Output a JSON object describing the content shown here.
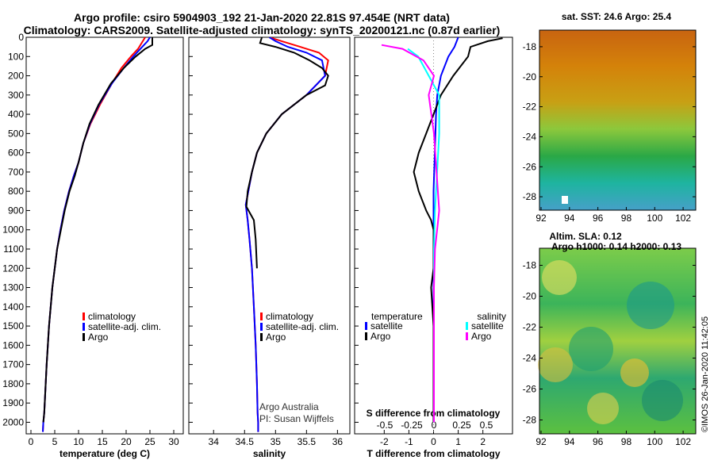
{
  "header": {
    "line1": "Argo profile: csiro 5904903_192 21-Jan-2020 22.81S 97.454E (NRT data)",
    "line2": "Climatology: CARS2009. Satellite-adjusted climatology: synTS_20200121.nc (0.87d earlier)"
  },
  "colors": {
    "climatology": "#ff0000",
    "satellite": "#0000ff",
    "argo": "#000000",
    "salinity_sat": "#00ffff",
    "salinity_argo": "#ff00ff"
  },
  "depth_axis": {
    "ticks": [
      0,
      100,
      200,
      300,
      400,
      500,
      600,
      700,
      800,
      900,
      1000,
      1100,
      1200,
      1300,
      1400,
      1500,
      1600,
      1700,
      1800,
      1900,
      2000
    ],
    "min": 0,
    "max": 2060
  },
  "panels": {
    "temperature": {
      "xlabel": "temperature (deg C)",
      "xlim": [
        -1,
        32
      ],
      "xticks": [
        0,
        5,
        10,
        15,
        20,
        25,
        30
      ],
      "legend": [
        {
          "label": "climatology",
          "key": "climatology"
        },
        {
          "label": "satellite-adj. clim.",
          "key": "satellite"
        },
        {
          "label": "Argo",
          "key": "argo"
        }
      ]
    },
    "salinity": {
      "xlabel": "salinity",
      "xlim": [
        33.6,
        36.2
      ],
      "xticks": [
        "34",
        "34.5",
        "35",
        "35.5",
        "36"
      ],
      "legend": [
        {
          "label": "climatology",
          "key": "climatology"
        },
        {
          "label": "satellite-adj. clim.",
          "key": "satellite"
        },
        {
          "label": "Argo",
          "key": "argo"
        }
      ],
      "credit1": "Argo Australia",
      "credit2": "PI: Susan Wijffels"
    },
    "difference": {
      "xlabel": "T difference from climatology",
      "xlim": [
        -3.2,
        3.2
      ],
      "xticks": [
        -2,
        -1,
        0,
        1,
        2
      ],
      "stitle": "S difference from climatology",
      "sticks": [
        "-0.5",
        "-0.25",
        "0",
        "0.25",
        "0.5"
      ],
      "legend_temp_title": "temperature",
      "legend_sal_title": "salinity",
      "legend_sat": "satellite",
      "legend_argo": "Argo"
    }
  },
  "chart_data": [
    {
      "type": "line",
      "title": "",
      "xlabel": "temperature (deg C)",
      "ylabel": "depth",
      "xlim": [
        -1,
        32
      ],
      "ylim": [
        2060,
        0
      ],
      "series": [
        {
          "name": "climatology",
          "color": "#ff0000",
          "x": [
            24.0,
            23.5,
            22.5,
            21.0,
            19.0,
            17.0,
            14.5,
            12.5,
            11.0,
            10.0,
            9.0,
            8.0,
            7.0,
            6.2,
            5.5,
            4.5,
            3.8,
            3.3,
            3.0,
            2.8,
            2.6,
            2.5
          ],
          "y": [
            0,
            20,
            60,
            100,
            160,
            240,
            350,
            450,
            550,
            650,
            720,
            800,
            900,
            1000,
            1100,
            1300,
            1500,
            1700,
            1850,
            1950,
            2000,
            2050
          ]
        },
        {
          "name": "satellite-adj. clim.",
          "color": "#0000ff",
          "x": [
            25.0,
            24.5,
            23.0,
            21.5,
            19.5,
            17.0,
            14.3,
            12.4,
            11.0,
            10.0,
            9.0,
            8.0,
            7.0,
            6.2,
            5.5,
            4.5,
            3.8,
            3.3,
            3.0,
            2.8,
            2.6,
            2.5
          ],
          "y": [
            0,
            20,
            60,
            100,
            160,
            240,
            350,
            450,
            550,
            650,
            720,
            800,
            900,
            1000,
            1100,
            1300,
            1500,
            1700,
            1850,
            1950,
            2000,
            2050
          ]
        },
        {
          "name": "Argo",
          "color": "#000000",
          "x": [
            25.5,
            25.5,
            24.0,
            22.0,
            19.5,
            16.8,
            14.2,
            12.3,
            11.0,
            10.0,
            9.2,
            8.1,
            7.1,
            6.3,
            5.5,
            4.5,
            3.8,
            3.3,
            3.0,
            2.8,
            2.6
          ],
          "y": [
            0,
            40,
            60,
            100,
            160,
            240,
            350,
            450,
            550,
            650,
            720,
            800,
            900,
            1000,
            1100,
            1300,
            1500,
            1700,
            1850,
            1950,
            2000
          ]
        }
      ]
    },
    {
      "type": "line",
      "title": "",
      "xlabel": "salinity",
      "ylabel": "depth",
      "xlim": [
        33.6,
        36.2
      ],
      "ylim": [
        2060,
        0
      ],
      "series": [
        {
          "name": "climatology",
          "color": "#ff0000",
          "x": [
            34.9,
            35.1,
            35.4,
            35.7,
            35.85,
            35.8,
            35.5,
            35.1,
            34.85,
            34.7,
            34.62,
            34.56,
            34.52,
            34.55,
            34.58,
            34.62,
            34.65,
            34.68,
            34.7,
            34.71,
            34.72,
            34.72
          ],
          "y": [
            0,
            20,
            50,
            80,
            120,
            200,
            300,
            400,
            500,
            600,
            700,
            800,
            870,
            950,
            1050,
            1200,
            1400,
            1600,
            1800,
            1950,
            2000,
            2050
          ]
        },
        {
          "name": "satellite-adj. clim.",
          "color": "#0000ff",
          "x": [
            34.9,
            35.0,
            35.2,
            35.5,
            35.75,
            35.8,
            35.5,
            35.1,
            34.85,
            34.7,
            34.62,
            34.56,
            34.52,
            34.55,
            34.58,
            34.62,
            34.65,
            34.68,
            34.7,
            34.71,
            34.72,
            34.72
          ],
          "y": [
            0,
            20,
            50,
            80,
            120,
            200,
            300,
            400,
            500,
            600,
            700,
            800,
            870,
            950,
            1050,
            1200,
            1400,
            1600,
            1800,
            1950,
            2000,
            2050
          ]
        },
        {
          "name": "Argo",
          "color": "#000000",
          "x": [
            34.78,
            34.75,
            35.0,
            35.3,
            35.55,
            35.75,
            35.85,
            35.8,
            35.5,
            35.1,
            34.85,
            34.7,
            34.62,
            34.55,
            34.53,
            34.65,
            34.68,
            34.7
          ],
          "y": [
            0,
            30,
            50,
            80,
            120,
            160,
            200,
            250,
            300,
            400,
            500,
            600,
            700,
            800,
            880,
            950,
            1050,
            1200
          ]
        }
      ]
    },
    {
      "type": "line",
      "title": "",
      "xlabel": "T difference from climatology",
      "ylabel": "depth",
      "xlim": [
        -3.2,
        3.2
      ],
      "ylim": [
        2060,
        0
      ],
      "series": [
        {
          "name": "temperature satellite",
          "color": "#0000ff",
          "x": [
            1.0,
            0.85,
            0.6,
            0.3,
            0.15,
            0.1,
            0.05,
            0.0,
            0.0,
            0.0,
            0.0,
            0.0,
            0.0
          ],
          "y": [
            0,
            50,
            100,
            200,
            300,
            400,
            600,
            800,
            1000,
            1200,
            1500,
            1800,
            2000
          ]
        },
        {
          "name": "temperature Argo",
          "color": "#000000",
          "x": [
            2.8,
            2.2,
            1.5,
            1.4,
            0.8,
            0.3,
            0.0,
            -0.3,
            -0.6,
            -0.8,
            -0.6,
            -0.3,
            -0.1,
            0.0,
            0.0,
            0.0,
            -0.1,
            0.0,
            0.0,
            0.0
          ],
          "y": [
            5,
            20,
            50,
            100,
            200,
            300,
            400,
            500,
            600,
            700,
            800,
            900,
            950,
            1000,
            1100,
            1200,
            1300,
            1500,
            1800,
            2000
          ]
        },
        {
          "name": "salinity satellite",
          "color": "#00ffff",
          "x": [
            -0.25,
            -0.15,
            -0.05,
            0.05,
            0.05,
            0.03,
            0.01,
            0.0,
            0.0,
            0.0,
            0.0
          ],
          "y": [
            60,
            100,
            200,
            300,
            500,
            700,
            900,
            1100,
            1300,
            1600,
            2000
          ]
        },
        {
          "name": "salinity Argo",
          "color": "#ff00ff",
          "x": [
            -0.5,
            -0.3,
            -0.1,
            0.0,
            -0.05,
            0.0,
            0.05,
            0.03,
            0.01,
            0.0,
            0.0,
            0.0,
            0.0
          ],
          "y": [
            40,
            60,
            120,
            200,
            300,
            500,
            900,
            1000,
            1100,
            1300,
            1500,
            1800,
            2000
          ]
        }
      ]
    },
    {
      "type": "heatmap",
      "title": "sat. SST: 24.6 Argo: 25.4",
      "xlabel": "",
      "ylabel": "",
      "xticks": [
        92,
        94,
        96,
        98,
        100,
        102
      ],
      "yticks": [
        -18,
        -20,
        -22,
        -24,
        -26,
        -28
      ],
      "xlim": [
        92,
        103
      ],
      "ylim": [
        -29,
        -17
      ]
    },
    {
      "type": "heatmap",
      "title": "Altim. SLA: 0.12",
      "subtitle": "Argo h1000: 0.14 h2000: 0.13",
      "xlabel": "",
      "ylabel": "",
      "xticks": [
        92,
        94,
        96,
        98,
        100,
        102
      ],
      "yticks": [
        -18,
        -20,
        -22,
        -24,
        -26,
        -28
      ],
      "xlim": [
        92,
        103
      ],
      "ylim": [
        -29,
        -17
      ]
    }
  ],
  "maps": {
    "sst_title": "sat. SST: 24.6 Argo: 25.4",
    "sla_title": "Altim. SLA: 0.12",
    "sla_subtitle": "Argo h1000: 0.14 h2000: 0.13",
    "xticks": [
      "92",
      "94",
      "96",
      "98",
      "100",
      "102"
    ],
    "yticks": [
      "-18",
      "-20",
      "-22",
      "-24",
      "-26",
      "-28"
    ]
  },
  "watermark": "©IMOS 26-Jan-2020 11:42:05"
}
